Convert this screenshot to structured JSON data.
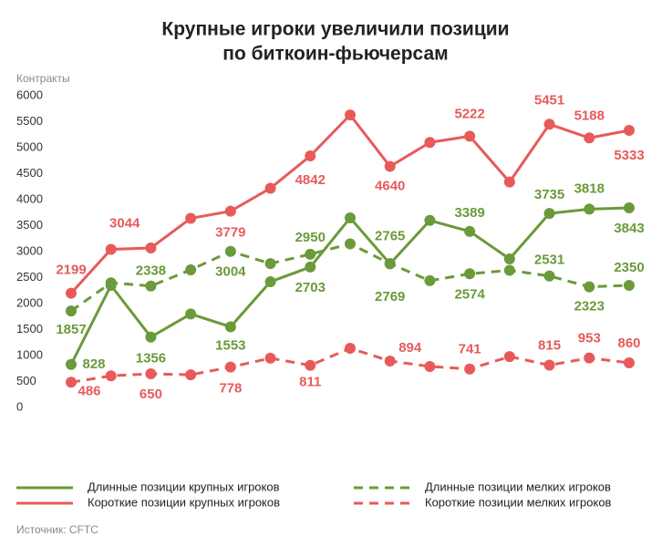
{
  "chart_data": {
    "type": "line",
    "title": "Крупные игроки увеличили позиции",
    "subtitle": "по биткоин-фьючерсам",
    "y_label": "Контракты",
    "source": "Источник: CFTC",
    "ylim": [
      0,
      6000
    ],
    "yticks": [
      0,
      500,
      1000,
      1500,
      2000,
      2500,
      3000,
      3500,
      4000,
      4500,
      5000,
      5500,
      6000
    ],
    "grid": false,
    "series": [
      {
        "name": "Длинные позиции крупных игроков",
        "color": "#6a9a3a",
        "dashed": false,
        "values": [
          828,
          2350,
          1356,
          1800,
          1553,
          2420,
          2703,
          3649,
          2765,
          3600,
          3389,
          2860,
          3735,
          3818,
          3843
        ],
        "value_labels": [
          "828",
          null,
          "1356",
          null,
          "1553",
          null,
          "2703",
          null,
          "2765",
          null,
          "3389",
          null,
          "3735",
          "3818",
          "3843"
        ]
      },
      {
        "name": "Короткие позиции крупных игроков",
        "color": "#e85a5a",
        "dashed": false,
        "values": [
          2199,
          3044,
          3070,
          3640,
          3779,
          4220,
          4842,
          5630,
          4640,
          5100,
          5222,
          4340,
          5451,
          5188,
          5333
        ],
        "value_labels": [
          "2199",
          "3044",
          null,
          null,
          "3779",
          null,
          "4842",
          null,
          "4640",
          null,
          "5222",
          null,
          "5451",
          "5188",
          "5333"
        ]
      },
      {
        "name": "Длинные позиции мелких игроков",
        "color": "#6a9a3a",
        "dashed": true,
        "values": [
          1857,
          2400,
          2338,
          2650,
          3004,
          2770,
          2950,
          3150,
          2769,
          2440,
          2574,
          2640,
          2531,
          2323,
          2350
        ],
        "value_labels": [
          "1857",
          null,
          "2338",
          null,
          "3004",
          null,
          "2950",
          null,
          "2769",
          null,
          "2574",
          null,
          "2531",
          "2323",
          "2350"
        ]
      },
      {
        "name": "Короткие позиции мелких игроков",
        "color": "#e85a5a",
        "dashed": true,
        "values": [
          486,
          610,
          650,
          630,
          778,
          950,
          811,
          1140,
          894,
          790,
          741,
          980,
          815,
          953,
          860
        ],
        "value_labels": [
          "486",
          null,
          "650",
          null,
          "778",
          null,
          "811",
          null,
          "894",
          null,
          "741",
          null,
          "815",
          "953",
          "860"
        ]
      }
    ]
  }
}
